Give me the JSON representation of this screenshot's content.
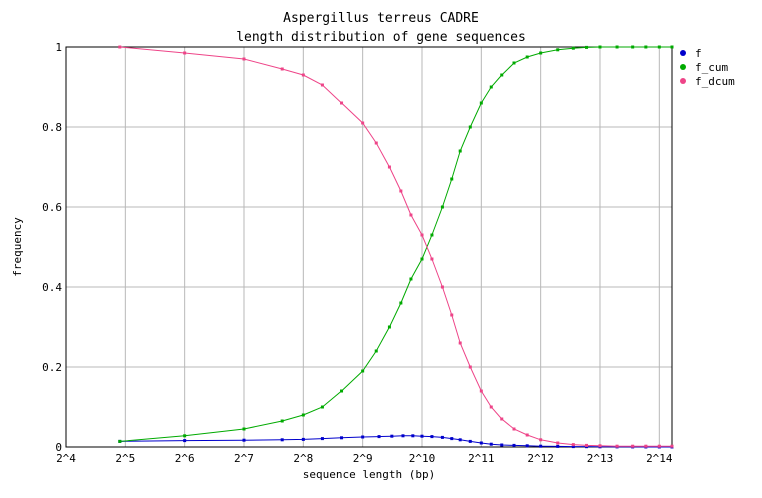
{
  "chart_data": {
    "type": "line",
    "title": "Aspergillus terreus CADRE",
    "subtitle": "length distribution of gene sequences",
    "xlabel": "sequence length (bp)",
    "ylabel": "frequency",
    "x_scale": "log2",
    "xlim": [
      16,
      19000
    ],
    "ylim": [
      0,
      1
    ],
    "x_ticks": [
      {
        "value": 16,
        "label": "2^4"
      },
      {
        "value": 32,
        "label": "2^5"
      },
      {
        "value": 64,
        "label": "2^6"
      },
      {
        "value": 128,
        "label": "2^7"
      },
      {
        "value": 256,
        "label": "2^8"
      },
      {
        "value": 512,
        "label": "2^9"
      },
      {
        "value": 1024,
        "label": "2^10"
      },
      {
        "value": 2048,
        "label": "2^11"
      },
      {
        "value": 4096,
        "label": "2^12"
      },
      {
        "value": 8192,
        "label": "2^13"
      },
      {
        "value": 16384,
        "label": "2^14"
      }
    ],
    "y_ticks": [
      {
        "value": 0,
        "label": "0"
      },
      {
        "value": 0.2,
        "label": "0.2"
      },
      {
        "value": 0.4,
        "label": "0.4"
      },
      {
        "value": 0.6,
        "label": "0.6"
      },
      {
        "value": 0.8,
        "label": "0.8"
      },
      {
        "value": 1,
        "label": "1"
      }
    ],
    "grid": true,
    "legend_position": "right",
    "series": [
      {
        "name": "f",
        "color": "#0000cc",
        "x": [
          30,
          64,
          128,
          200,
          256,
          320,
          400,
          512,
          620,
          720,
          820,
          920,
          1024,
          1150,
          1300,
          1450,
          1600,
          1800,
          2048,
          2300,
          2600,
          3000,
          3500,
          4096,
          5000,
          6000,
          7000,
          8192,
          10000,
          12000,
          14000,
          16384,
          19000
        ],
        "y": [
          0.014,
          0.016,
          0.017,
          0.018,
          0.019,
          0.021,
          0.023,
          0.025,
          0.026,
          0.027,
          0.028,
          0.028,
          0.027,
          0.026,
          0.024,
          0.021,
          0.018,
          0.014,
          0.01,
          0.007,
          0.005,
          0.004,
          0.003,
          0.002,
          0.0015,
          0.001,
          0.0008,
          0.0005,
          0.0003,
          0.0002,
          0.0001,
          0.0001,
          0.0001
        ]
      },
      {
        "name": "f_cum",
        "color": "#00aa00",
        "x": [
          30,
          64,
          128,
          200,
          256,
          320,
          400,
          512,
          600,
          700,
          800,
          900,
          1024,
          1150,
          1300,
          1450,
          1600,
          1800,
          2048,
          2300,
          2600,
          3000,
          3500,
          4096,
          5000,
          6000,
          7000,
          8192,
          10000,
          12000,
          14000,
          16384,
          19000
        ],
        "y": [
          0.014,
          0.028,
          0.045,
          0.065,
          0.08,
          0.1,
          0.14,
          0.19,
          0.24,
          0.3,
          0.36,
          0.42,
          0.47,
          0.53,
          0.6,
          0.67,
          0.74,
          0.8,
          0.86,
          0.9,
          0.93,
          0.96,
          0.975,
          0.985,
          0.993,
          0.997,
          0.999,
          1.0,
          1.0,
          1.0,
          1.0,
          1.0,
          1.0
        ]
      },
      {
        "name": "f_dcum",
        "color": "#ee4488",
        "x": [
          30,
          64,
          128,
          200,
          256,
          320,
          400,
          512,
          600,
          700,
          800,
          900,
          1024,
          1150,
          1300,
          1450,
          1600,
          1800,
          2048,
          2300,
          2600,
          3000,
          3500,
          4096,
          5000,
          6000,
          7000,
          8192,
          10000,
          12000,
          14000,
          16384,
          19000
        ],
        "y": [
          1.0,
          0.985,
          0.97,
          0.945,
          0.93,
          0.905,
          0.86,
          0.81,
          0.76,
          0.7,
          0.64,
          0.58,
          0.53,
          0.47,
          0.4,
          0.33,
          0.26,
          0.2,
          0.14,
          0.1,
          0.07,
          0.045,
          0.03,
          0.018,
          0.01,
          0.006,
          0.004,
          0.003,
          0.002,
          0.002,
          0.002,
          0.002,
          0.002
        ]
      }
    ]
  }
}
